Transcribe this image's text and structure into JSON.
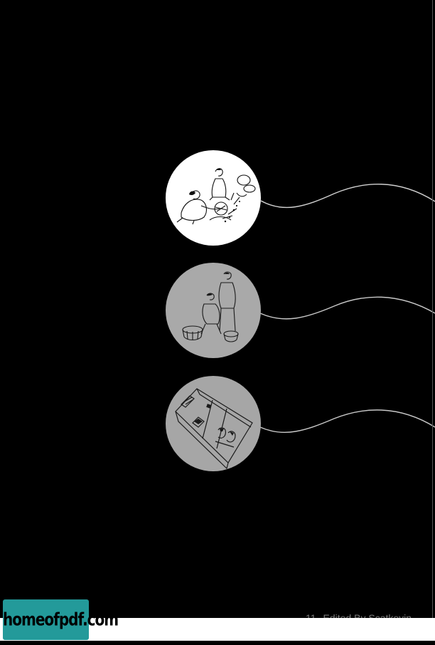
{
  "footer": {
    "page_number": "11",
    "credit": "Edited By Scatkevin"
  },
  "watermark": {
    "logo_text": "homeofpdf.com"
  },
  "colors": {
    "background": "#000000",
    "circle_top": "#ffffff",
    "circle_middle": "#a9a9a9",
    "circle_bottom": "#a6a6a6",
    "connector": "#cfcfcf",
    "logo_background": "#239a9a"
  },
  "illustrations": [
    {
      "icon": "bath-attendants-illustration-icon"
    },
    {
      "icon": "bathers-with-tub-illustration-icon"
    },
    {
      "icon": "bathhouse-cutaway-illustration-icon"
    }
  ]
}
